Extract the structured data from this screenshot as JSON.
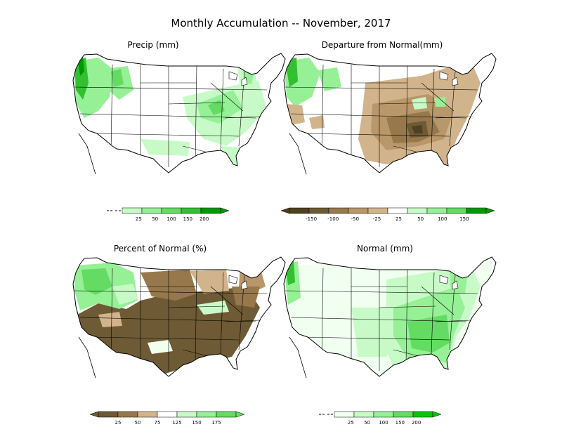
{
  "title": "Monthly Accumulation -- November, 2017",
  "colors": {
    "green_1": "#c8fac8",
    "green_2": "#96f096",
    "green_3": "#64dc64",
    "green_4": "#32c032",
    "green_5": "#009a00",
    "brown_1": "#d2b48c",
    "brown_2": "#b8976a",
    "brown_3": "#97784c",
    "brown_4": "#6e5a34",
    "brown_5": "#4f4020",
    "pale": "#f0fff0",
    "map_line": "#000000"
  },
  "panels": [
    {
      "title": "Precip (mm)",
      "scheme": "precip",
      "legend": {
        "labels": [
          "25",
          "50",
          "100",
          "150",
          "200"
        ],
        "colors": [
          "#c8fac8",
          "#96f096",
          "#64dc64",
          "#32c032",
          "#009a00"
        ],
        "has_under_dash": true
      }
    },
    {
      "title": "Departure from Normal(mm)",
      "scheme": "departure",
      "legend": {
        "labels": [
          "-150",
          "-100",
          "-50",
          "-25",
          "25",
          "50",
          "100",
          "150"
        ],
        "colors": [
          "#4f4020",
          "#6e5a34",
          "#97784c",
          "#b8976a",
          "#d2b48c",
          "#ffffff",
          "#c8fac8",
          "#96f096",
          "#64dc64",
          "#009a00"
        ],
        "has_under_dash": false
      }
    },
    {
      "title": "Percent of Normal (%)",
      "scheme": "percent",
      "legend": {
        "labels": [
          "25",
          "50",
          "75",
          "125",
          "150",
          "175"
        ],
        "colors": [
          "#6e5a34",
          "#97784c",
          "#d2b48c",
          "#ffffff",
          "#c8fac8",
          "#96f096",
          "#64dc64"
        ],
        "has_under_dash": false
      }
    },
    {
      "title": "Normal (mm)",
      "scheme": "normal",
      "legend": {
        "labels": [
          "25",
          "50",
          "100",
          "150",
          "200"
        ],
        "colors": [
          "#f0fff0",
          "#c8fac8",
          "#96f096",
          "#64dc64",
          "#00c800"
        ],
        "has_under_dash": true
      }
    }
  ]
}
